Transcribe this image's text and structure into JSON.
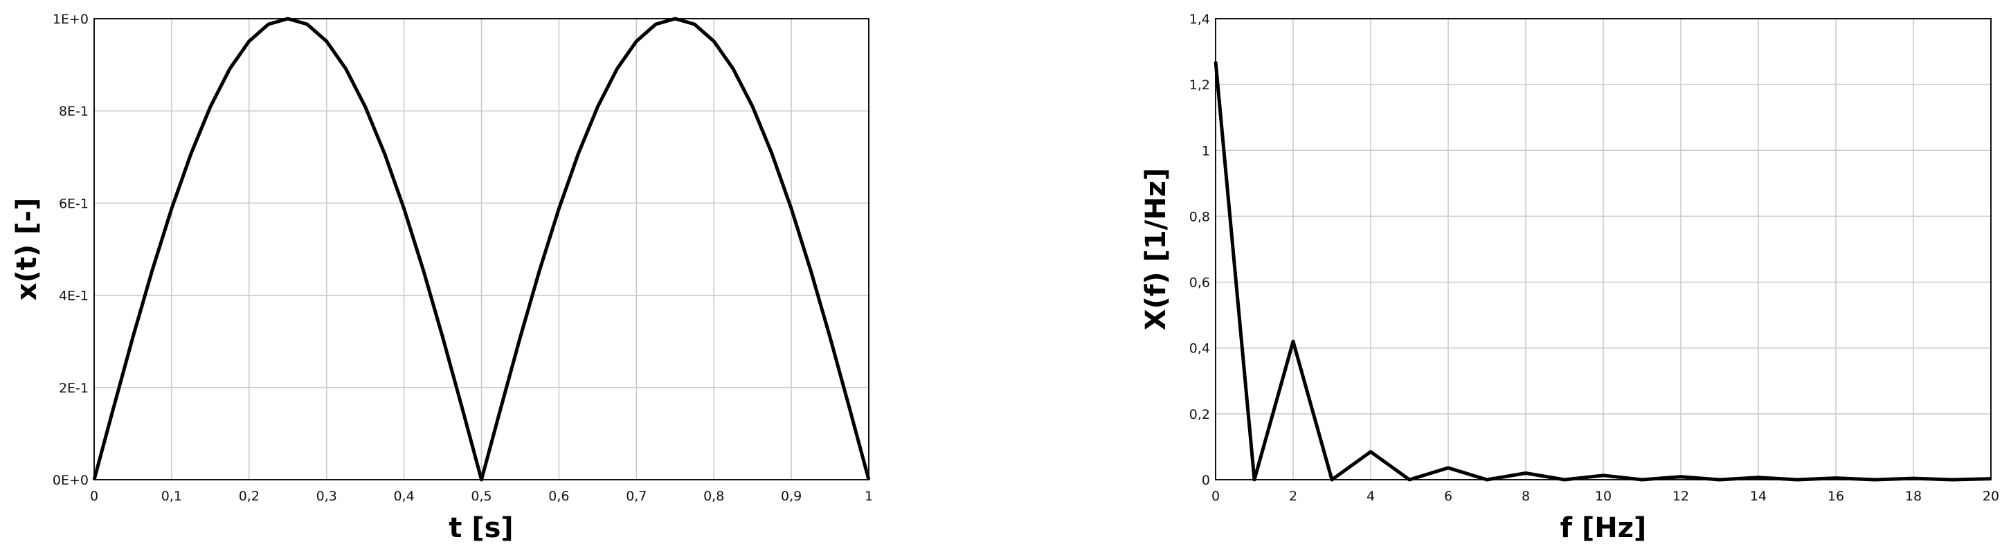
{
  "chart_data": [
    {
      "type": "line",
      "xlabel": "t [s]",
      "ylabel": "x(t) [-]",
      "xlim": [
        0,
        1
      ],
      "ylim": [
        0,
        1
      ],
      "grid": true,
      "x_ticks": [
        "0",
        "0,1",
        "0,2",
        "0,3",
        "0,4",
        "0,5",
        "0,6",
        "0,7",
        "0,8",
        "0,9",
        "1"
      ],
      "y_ticks": [
        "0E+0",
        "2E-1",
        "4E-1",
        "6E-1",
        "8E-1",
        "1E+0"
      ],
      "series": [
        {
          "x": [
            0,
            0.025,
            0.05,
            0.075,
            0.1,
            0.125,
            0.15,
            0.175,
            0.2,
            0.225,
            0.25,
            0.275,
            0.3,
            0.325,
            0.35,
            0.375,
            0.4,
            0.425,
            0.45,
            0.475,
            0.5,
            0.525,
            0.55,
            0.575,
            0.6,
            0.625,
            0.65,
            0.675,
            0.7,
            0.725,
            0.75,
            0.775,
            0.8,
            0.825,
            0.85,
            0.875,
            0.9,
            0.925,
            0.95,
            0.975,
            1
          ],
          "y": [
            0,
            0.156,
            0.309,
            0.454,
            0.588,
            0.707,
            0.809,
            0.891,
            0.951,
            0.988,
            1,
            0.988,
            0.951,
            0.891,
            0.809,
            0.707,
            0.588,
            0.454,
            0.309,
            0.156,
            0,
            0.156,
            0.309,
            0.454,
            0.588,
            0.707,
            0.809,
            0.891,
            0.951,
            0.988,
            1,
            0.988,
            0.951,
            0.891,
            0.809,
            0.707,
            0.588,
            0.454,
            0.309,
            0.156,
            0
          ]
        }
      ]
    },
    {
      "type": "line",
      "xlabel": "f [Hz]",
      "ylabel": "X(f) [1/Hz]",
      "xlim": [
        0,
        20
      ],
      "ylim": [
        0,
        1.4
      ],
      "grid": true,
      "x_ticks": [
        "0",
        "2",
        "4",
        "6",
        "8",
        "10",
        "12",
        "14",
        "16",
        "18",
        "20"
      ],
      "y_ticks": [
        "0",
        "0,2",
        "0,4",
        "0,6",
        "0,8",
        "1",
        "1,2",
        "1,4"
      ],
      "series": [
        {
          "x": [
            0,
            1,
            2,
            3,
            4,
            5,
            6,
            7,
            8,
            9,
            10,
            11,
            12,
            13,
            14,
            15,
            16,
            17,
            18,
            19,
            20
          ],
          "y": [
            1.27,
            0,
            0.42,
            0,
            0.085,
            0,
            0.036,
            0,
            0.02,
            0,
            0.013,
            0,
            0.009,
            0,
            0.007,
            0,
            0.005,
            0,
            0.004,
            0,
            0.003
          ]
        }
      ]
    }
  ]
}
